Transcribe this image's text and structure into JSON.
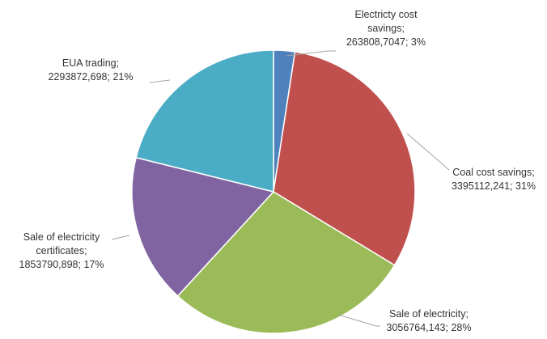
{
  "chart_data": {
    "type": "pie",
    "title": "",
    "slices": [
      {
        "name": "Electricty cost savings",
        "value": 263808.7047,
        "percent": 3,
        "label_lines": [
          "Electricty cost",
          "savings;",
          "263808,7047; 3%"
        ],
        "color": "#4f81bd"
      },
      {
        "name": "Coal cost savings",
        "value": 3395112.241,
        "percent": 31,
        "label_lines": [
          "Coal cost savings;",
          "3395112,241; 31%"
        ],
        "color": "#c0504d"
      },
      {
        "name": "Sale of electricity",
        "value": 3056764.143,
        "percent": 28,
        "label_lines": [
          "Sale of electricity;",
          "3056764,143; 28%"
        ],
        "color": "#9bbb59"
      },
      {
        "name": "Sale of electricity certificates",
        "value": 1853790.898,
        "percent": 17,
        "label_lines": [
          "Sale of electricity",
          "certificates;",
          "1853790,898; 17%"
        ],
        "color": "#8064a2"
      },
      {
        "name": "EUA trading",
        "value": 2293872.698,
        "percent": 21,
        "label_lines": [
          "EUA trading;",
          "2293872,698; 21%"
        ],
        "color": "#4bacc6"
      }
    ],
    "legend": "none",
    "leader_line_color": "#a6a6a6"
  }
}
